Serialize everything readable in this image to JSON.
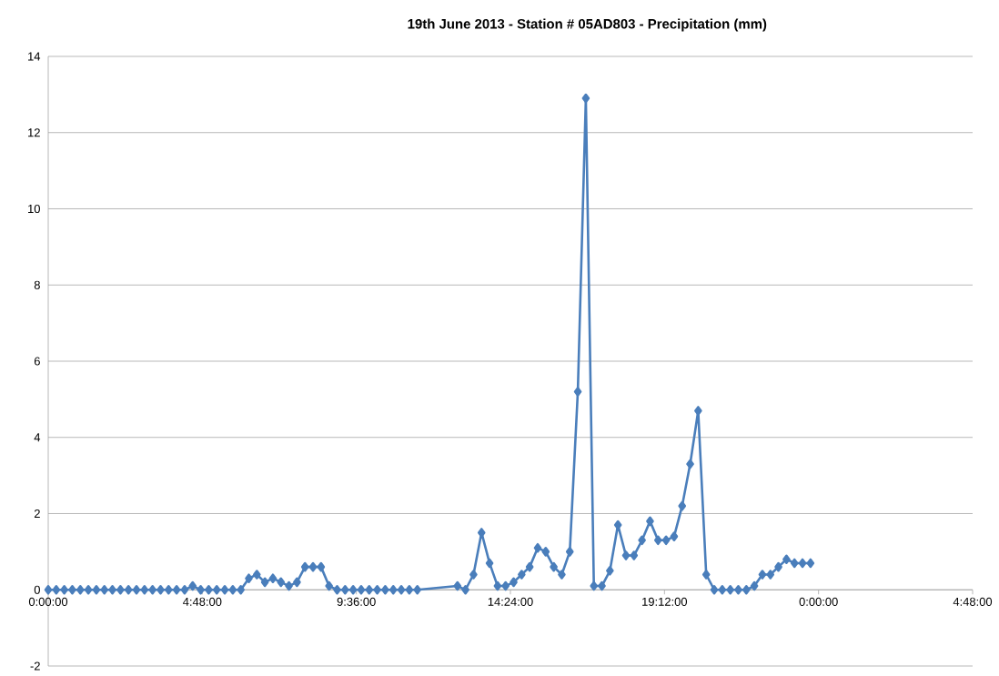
{
  "chart_data": {
    "type": "line",
    "title": "19th June 2013 - Station # 05AD803 - Precipitation (mm)",
    "xlim": [
      "2013-06-19T00:00",
      "2013-06-20T04:48"
    ],
    "xticks": [
      {
        "value": "2013-06-19T00:00",
        "label": "0:00:00"
      },
      {
        "value": "2013-06-19T04:48",
        "label": "4:48:00"
      },
      {
        "value": "2013-06-19T09:36",
        "label": "9:36:00"
      },
      {
        "value": "2013-06-19T14:24",
        "label": "14:24:00"
      },
      {
        "value": "2013-06-19T19:12",
        "label": "19:12:00"
      },
      {
        "value": "2013-06-20T00:00",
        "label": "0:00:00"
      },
      {
        "value": "2013-06-20T04:48",
        "label": "4:48:00"
      }
    ],
    "ylim": [
      -2,
      14
    ],
    "yticks": [
      -2,
      0,
      2,
      4,
      6,
      8,
      10,
      12,
      14
    ],
    "grid": "y",
    "marker": "diamond",
    "line_style": "solid",
    "series": [
      {
        "color": "#4a7ebb",
        "x": [
          "2013-06-19T00:00",
          "2013-06-19T00:15",
          "2013-06-19T00:30",
          "2013-06-19T00:45",
          "2013-06-19T01:00",
          "2013-06-19T01:15",
          "2013-06-19T01:30",
          "2013-06-19T01:45",
          "2013-06-19T02:00",
          "2013-06-19T02:15",
          "2013-06-19T02:30",
          "2013-06-19T02:45",
          "2013-06-19T03:00",
          "2013-06-19T03:15",
          "2013-06-19T03:30",
          "2013-06-19T03:45",
          "2013-06-19T04:00",
          "2013-06-19T04:15",
          "2013-06-19T04:30",
          "2013-06-19T04:45",
          "2013-06-19T05:00",
          "2013-06-19T05:15",
          "2013-06-19T05:30",
          "2013-06-19T05:45",
          "2013-06-19T06:00",
          "2013-06-19T06:15",
          "2013-06-19T06:30",
          "2013-06-19T06:45",
          "2013-06-19T07:00",
          "2013-06-19T07:15",
          "2013-06-19T07:30",
          "2013-06-19T07:45",
          "2013-06-19T08:00",
          "2013-06-19T08:15",
          "2013-06-19T08:30",
          "2013-06-19T08:45",
          "2013-06-19T09:00",
          "2013-06-19T09:15",
          "2013-06-19T09:30",
          "2013-06-19T09:45",
          "2013-06-19T10:00",
          "2013-06-19T10:15",
          "2013-06-19T10:30",
          "2013-06-19T10:45",
          "2013-06-19T11:00",
          "2013-06-19T11:15",
          "2013-06-19T11:30",
          "2013-06-19T12:45",
          "2013-06-19T13:00",
          "2013-06-19T13:15",
          "2013-06-19T13:30",
          "2013-06-19T13:45",
          "2013-06-19T14:00",
          "2013-06-19T14:15",
          "2013-06-19T14:30",
          "2013-06-19T14:45",
          "2013-06-19T15:00",
          "2013-06-19T15:15",
          "2013-06-19T15:30",
          "2013-06-19T15:45",
          "2013-06-19T16:00",
          "2013-06-19T16:15",
          "2013-06-19T16:30",
          "2013-06-19T16:45",
          "2013-06-19T17:00",
          "2013-06-19T17:15",
          "2013-06-19T17:30",
          "2013-06-19T17:45",
          "2013-06-19T18:00",
          "2013-06-19T18:15",
          "2013-06-19T18:30",
          "2013-06-19T18:45",
          "2013-06-19T19:00",
          "2013-06-19T19:15",
          "2013-06-19T19:30",
          "2013-06-19T19:45",
          "2013-06-19T20:00",
          "2013-06-19T20:15",
          "2013-06-19T20:30",
          "2013-06-19T20:45",
          "2013-06-19T21:00",
          "2013-06-19T21:15",
          "2013-06-19T21:30",
          "2013-06-19T21:45",
          "2013-06-19T22:00",
          "2013-06-19T22:15",
          "2013-06-19T22:30",
          "2013-06-19T22:45",
          "2013-06-19T23:00",
          "2013-06-19T23:15",
          "2013-06-19T23:30",
          "2013-06-19T23:45"
        ],
        "values": [
          0,
          0,
          0,
          0,
          0,
          0,
          0,
          0,
          0,
          0,
          0,
          0,
          0,
          0,
          0,
          0,
          0,
          0,
          0.1,
          0,
          0,
          0,
          0,
          0,
          0,
          0.3,
          0.4,
          0.2,
          0.3,
          0.2,
          0.1,
          0.2,
          0.6,
          0.6,
          0.6,
          0.1,
          0,
          0,
          0,
          0,
          0,
          0,
          0,
          0,
          0,
          0,
          0,
          0.1,
          0,
          0.4,
          1.5,
          0.7,
          0.1,
          0.1,
          0.2,
          0.4,
          0.6,
          1.1,
          1.0,
          0.6,
          0.4,
          1.0,
          5.2,
          12.9,
          0.1,
          0.1,
          0.5,
          1.7,
          0.9,
          0.9,
          1.3,
          1.8,
          1.3,
          1.3,
          1.4,
          2.2,
          3.3,
          4.7,
          0.4,
          0,
          0,
          0,
          0,
          0,
          0.1,
          0.4,
          0.4,
          0.6,
          0.8,
          0.7,
          0.7,
          0.7
        ]
      }
    ]
  }
}
